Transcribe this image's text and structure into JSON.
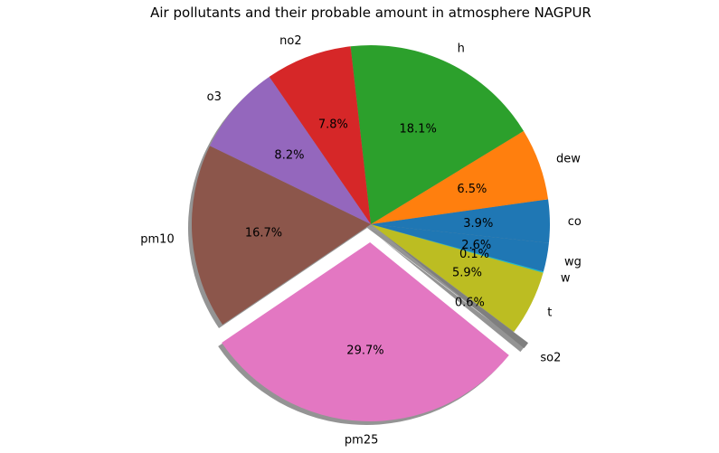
{
  "chart_data": {
    "type": "pie",
    "title": "Air pollutants and their probable amount in atmosphere NAGPUR",
    "slices": [
      {
        "label": "co",
        "value": 3.9,
        "pct_label": "3.9%",
        "color": "#1f77b4"
      },
      {
        "label": "dew",
        "value": 6.5,
        "pct_label": "6.5%",
        "color": "#ff7f0e"
      },
      {
        "label": "h",
        "value": 18.1,
        "pct_label": "18.1%",
        "color": "#2ca02c"
      },
      {
        "label": "no2",
        "value": 7.8,
        "pct_label": "7.8%",
        "color": "#d62728"
      },
      {
        "label": "o3",
        "value": 8.2,
        "pct_label": "8.2%",
        "color": "#9467bd"
      },
      {
        "label": "pm10",
        "value": 16.7,
        "pct_label": "16.7%",
        "color": "#8c564b"
      },
      {
        "label": "pm25",
        "value": 29.7,
        "pct_label": "29.7%",
        "color": "#e377c2",
        "exploded": true
      },
      {
        "label": "so2",
        "value": 0.6,
        "pct_label": "0.6%",
        "color": "#7f7f7f",
        "exploded": true
      },
      {
        "label": "t",
        "value": 5.9,
        "pct_label": "5.9%",
        "color": "#bcbd22"
      },
      {
        "label": "w",
        "value": 0.1,
        "pct_label": "0.1%",
        "color": "#17becf"
      },
      {
        "label": "wg",
        "value": 2.6,
        "pct_label": "2.6%",
        "color": "#1f77b4"
      }
    ],
    "start_angle_deg": -6,
    "shadow": true
  }
}
